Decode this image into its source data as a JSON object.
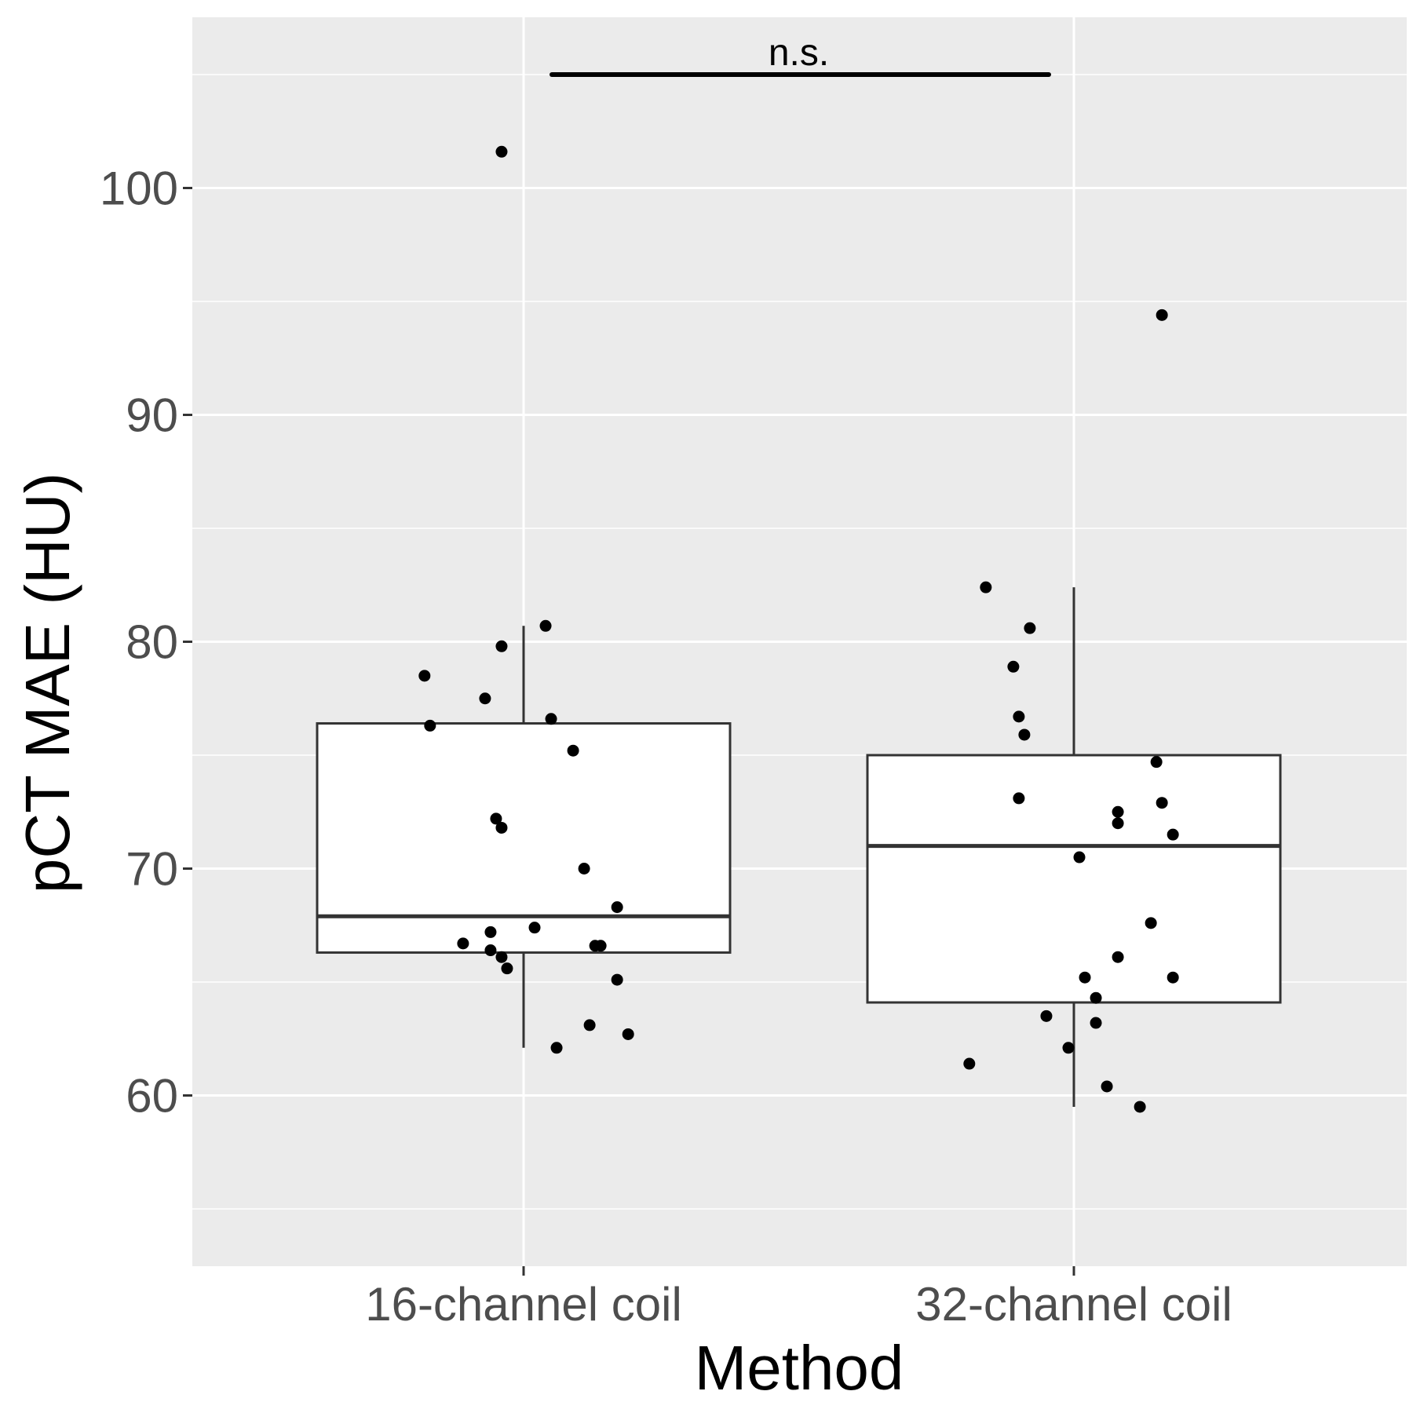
{
  "chart_data": {
    "type": "boxplot",
    "xlabel": "Method",
    "ylabel": "pCT MAE (HU)",
    "categories": [
      "16-channel coil",
      "32-channel coil"
    ],
    "ylim": [
      52.5,
      107
    ],
    "y_major_ticks": [
      60,
      70,
      80,
      90,
      100
    ],
    "y_minor_gridlines": [
      55,
      65,
      75,
      85,
      95,
      105
    ],
    "grid": true,
    "boxes": [
      {
        "name": "16-channel coil",
        "whisker_low": 62.1,
        "q1": 66.3,
        "median": 67.9,
        "q3": 76.4,
        "whisker_high": 80.7
      },
      {
        "name": "32-channel coil",
        "whisker_low": 59.5,
        "q1": 64.1,
        "median": 71.0,
        "q3": 75.0,
        "whisker_high": 82.4
      }
    ],
    "points": [
      {
        "group": 0,
        "jitter": -0.04,
        "y": 101.6
      },
      {
        "group": 0,
        "jitter": 0.04,
        "y": 80.7
      },
      {
        "group": 0,
        "jitter": -0.04,
        "y": 79.8
      },
      {
        "group": 0,
        "jitter": -0.18,
        "y": 78.5
      },
      {
        "group": 0,
        "jitter": -0.07,
        "y": 77.5
      },
      {
        "group": 0,
        "jitter": 0.05,
        "y": 76.6
      },
      {
        "group": 0,
        "jitter": -0.17,
        "y": 76.3
      },
      {
        "group": 0,
        "jitter": 0.09,
        "y": 75.2
      },
      {
        "group": 0,
        "jitter": -0.05,
        "y": 72.2
      },
      {
        "group": 0,
        "jitter": -0.04,
        "y": 71.8
      },
      {
        "group": 0,
        "jitter": 0.11,
        "y": 70.0
      },
      {
        "group": 0,
        "jitter": 0.17,
        "y": 68.3
      },
      {
        "group": 0,
        "jitter": 0.02,
        "y": 67.4
      },
      {
        "group": 0,
        "jitter": -0.06,
        "y": 67.2
      },
      {
        "group": 0,
        "jitter": -0.11,
        "y": 66.7
      },
      {
        "group": 0,
        "jitter": 0.13,
        "y": 66.6
      },
      {
        "group": 0,
        "jitter": 0.14,
        "y": 66.6
      },
      {
        "group": 0,
        "jitter": -0.06,
        "y": 66.4
      },
      {
        "group": 0,
        "jitter": -0.04,
        "y": 66.1
      },
      {
        "group": 0,
        "jitter": -0.03,
        "y": 65.6
      },
      {
        "group": 0,
        "jitter": 0.17,
        "y": 65.1
      },
      {
        "group": 0,
        "jitter": 0.12,
        "y": 63.1
      },
      {
        "group": 0,
        "jitter": 0.19,
        "y": 62.7
      },
      {
        "group": 0,
        "jitter": 0.06,
        "y": 62.1
      },
      {
        "group": 1,
        "jitter": 0.16,
        "y": 94.4
      },
      {
        "group": 1,
        "jitter": -0.16,
        "y": 82.4
      },
      {
        "group": 1,
        "jitter": -0.08,
        "y": 80.6
      },
      {
        "group": 1,
        "jitter": -0.11,
        "y": 78.9
      },
      {
        "group": 1,
        "jitter": -0.1,
        "y": 76.7
      },
      {
        "group": 1,
        "jitter": -0.09,
        "y": 75.9
      },
      {
        "group": 1,
        "jitter": 0.15,
        "y": 74.7
      },
      {
        "group": 1,
        "jitter": -0.1,
        "y": 73.1
      },
      {
        "group": 1,
        "jitter": 0.16,
        "y": 72.9
      },
      {
        "group": 1,
        "jitter": 0.08,
        "y": 72.5
      },
      {
        "group": 1,
        "jitter": 0.08,
        "y": 72.0
      },
      {
        "group": 1,
        "jitter": 0.18,
        "y": 71.5
      },
      {
        "group": 1,
        "jitter": 0.01,
        "y": 70.5
      },
      {
        "group": 1,
        "jitter": 0.14,
        "y": 67.6
      },
      {
        "group": 1,
        "jitter": 0.08,
        "y": 66.1
      },
      {
        "group": 1,
        "jitter": 0.02,
        "y": 65.2
      },
      {
        "group": 1,
        "jitter": 0.18,
        "y": 65.2
      },
      {
        "group": 1,
        "jitter": 0.04,
        "y": 64.3
      },
      {
        "group": 1,
        "jitter": -0.05,
        "y": 63.5
      },
      {
        "group": 1,
        "jitter": 0.04,
        "y": 63.2
      },
      {
        "group": 1,
        "jitter": -0.01,
        "y": 62.1
      },
      {
        "group": 1,
        "jitter": -0.19,
        "y": 61.4
      },
      {
        "group": 1,
        "jitter": 0.06,
        "y": 60.4
      },
      {
        "group": 1,
        "jitter": 0.12,
        "y": 59.5
      }
    ],
    "significance": {
      "from": 0,
      "to": 1,
      "y": 105,
      "label": "n.s."
    },
    "colors": {
      "panel": "#ebebeb",
      "grid": "#ffffff",
      "box_fill": "#ffffff",
      "box_stroke": "#333333",
      "point": "#000000",
      "tick_text": "#4d4d4d",
      "title_text": "#000000"
    }
  }
}
